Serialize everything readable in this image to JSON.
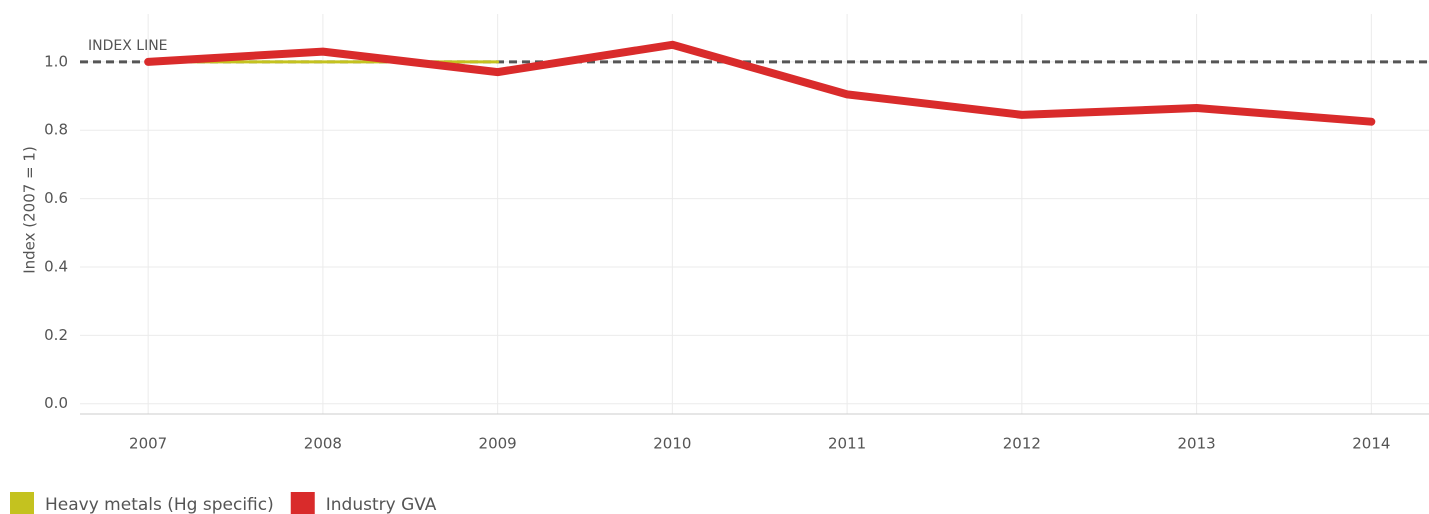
{
  "chart_data": {
    "type": "line",
    "x": [
      2007,
      2008,
      2009,
      2010,
      2011,
      2012,
      2013,
      2014
    ],
    "series": [
      {
        "name": "Heavy metals (Hg specific)",
        "color": "#c4c21f",
        "values": [
          1.0,
          1.0,
          1.0,
          null,
          null,
          null,
          null,
          null
        ]
      },
      {
        "name": "Industry GVA",
        "color": "#d92b2b",
        "values": [
          1.0,
          1.03,
          0.97,
          1.05,
          0.905,
          0.845,
          0.865,
          0.825
        ]
      }
    ],
    "y_label": "Index (2007 = 1)",
    "xlim": [
      2006.61,
      2014.33
    ],
    "xticks": [
      2007,
      2008,
      2009,
      2010,
      2011,
      2012,
      2013,
      2014
    ],
    "ylim": [
      -0.03,
      1.14
    ],
    "yticks": [
      {
        "value": 0,
        "label": "0.0"
      },
      0.2,
      0.4,
      0.6,
      0.8,
      {
        "value": 1,
        "label": "1.0"
      }
    ],
    "index_line": {
      "value": 1,
      "label": "INDEX LINE"
    },
    "grid": true,
    "legend": "bottom-left"
  }
}
